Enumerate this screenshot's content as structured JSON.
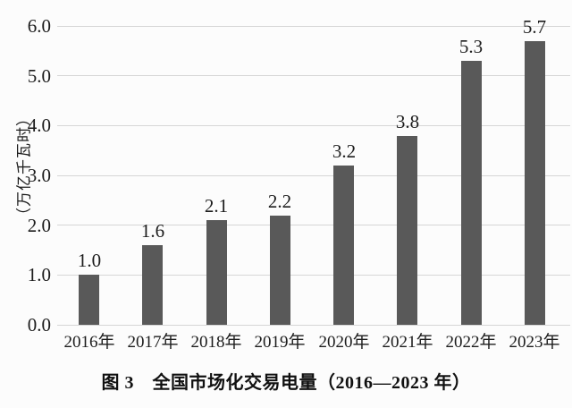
{
  "chart_data": {
    "type": "bar",
    "title": "图 3　全国市场化交易电量（2016—2023 年）",
    "ylabel": "（万亿千瓦时）",
    "xlabel": "",
    "categories": [
      "2016年",
      "2017年",
      "2018年",
      "2019年",
      "2020年",
      "2021年",
      "2022年",
      "2023年"
    ],
    "values": [
      1.0,
      1.6,
      2.1,
      2.2,
      3.2,
      3.8,
      5.3,
      5.7
    ],
    "data_labels": [
      "1.0",
      "1.6",
      "2.1",
      "2.2",
      "3.2",
      "3.8",
      "5.3",
      "5.7"
    ],
    "yticks": [
      "0.0",
      "1.0",
      "2.0",
      "3.0",
      "4.0",
      "5.0",
      "6.0"
    ],
    "ylim": [
      0,
      6
    ],
    "grid": "horizontal",
    "legend": "none",
    "series_count": 1,
    "colors": {
      "bar": "#595959",
      "gridline": "#d6d6d6",
      "background": "#fcfcfc",
      "text": "#1c1c1c"
    }
  }
}
